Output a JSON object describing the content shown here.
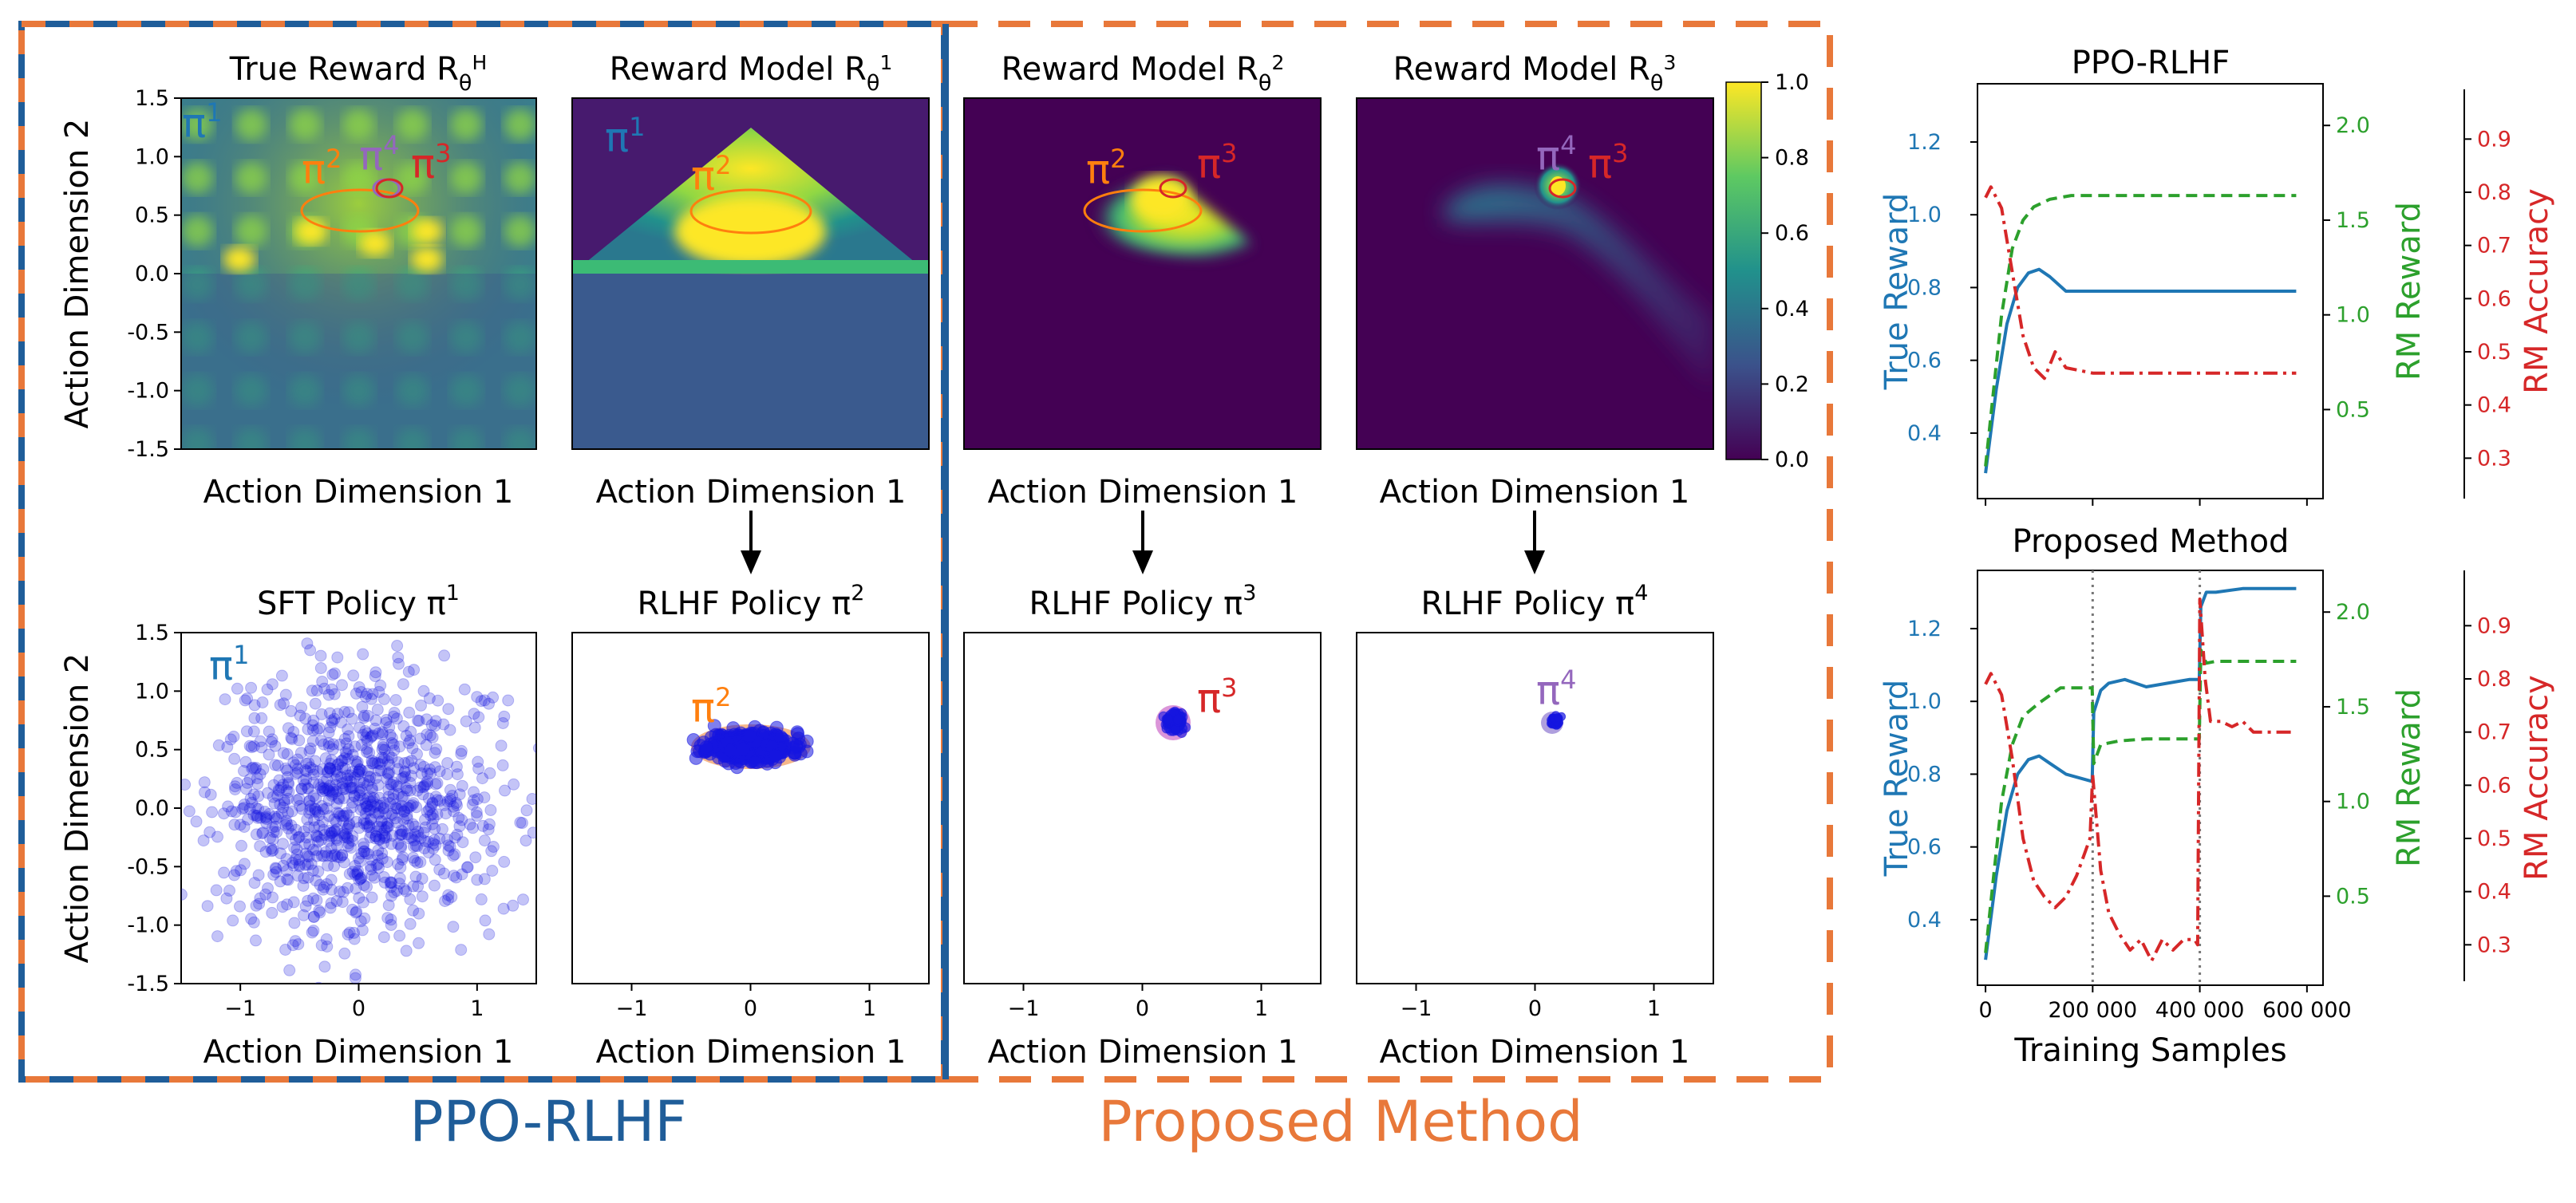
{
  "figure": {
    "group_labels": {
      "left": "PPO-RLHF",
      "right": "Proposed Method"
    },
    "colors": {
      "ppo": "#1f5d99",
      "proposed": "#e8783a",
      "blue": "#1f77b4",
      "green": "#2ca02c",
      "red": "#d62728",
      "orange": "#ff7f0e",
      "purple": "#9467bd",
      "scatter": "#1515e0"
    },
    "colorbar": {
      "ticks": [
        "1.0",
        "0.8",
        "0.6",
        "0.4",
        "0.2",
        "0.0"
      ]
    }
  },
  "chart_data": [
    {
      "type": "heatmap",
      "id": "true-reward",
      "title": "True Reward R",
      "title_sub": "θ",
      "title_sup": "H",
      "xlabel": "Action Dimension 1",
      "ylabel": "Action Dimension 2",
      "xlim": [
        -1.5,
        1.5
      ],
      "ylim": [
        -1.5,
        1.5
      ],
      "yticks": [
        "1.5",
        "1.0",
        "0.5",
        "0.0",
        "-0.5",
        "-1.0",
        "-1.5"
      ],
      "annotations": [
        "π",
        "π",
        "π",
        "π"
      ],
      "annotation_sups": [
        "1",
        "2",
        "4",
        "3"
      ]
    },
    {
      "type": "heatmap",
      "id": "rm1",
      "title": "Reward Model R",
      "title_sub": "θ",
      "title_sup": "1",
      "xlabel": "Action Dimension 1",
      "annotations": [
        "π",
        "π"
      ],
      "annotation_sups": [
        "1",
        "2"
      ]
    },
    {
      "type": "heatmap",
      "id": "rm2",
      "title": "Reward Model R",
      "title_sub": "θ",
      "title_sup": "2",
      "xlabel": "Action Dimension 1",
      "annotations": [
        "π",
        "π"
      ],
      "annotation_sups": [
        "2",
        "3"
      ]
    },
    {
      "type": "heatmap",
      "id": "rm3",
      "title": "Reward Model R",
      "title_sub": "θ",
      "title_sup": "3",
      "xlabel": "Action Dimension 1",
      "annotations": [
        "π",
        "π"
      ],
      "annotation_sups": [
        "4",
        "3"
      ]
    },
    {
      "type": "scatter",
      "id": "sft",
      "title": "SFT Policy π",
      "title_sup": "1",
      "xlabel": "Action Dimension 1",
      "ylabel": "Action Dimension 2",
      "xlim": [
        -1.5,
        1.5
      ],
      "ylim": [
        -1.5,
        1.5
      ],
      "xticks": [
        "−1",
        "0",
        "1"
      ],
      "yticks": [
        "1.5",
        "1.0",
        "0.5",
        "0.0",
        "-0.5",
        "-1.0",
        "-1.5"
      ],
      "annotation": "π",
      "annotation_sup": "1",
      "mean": [
        0,
        0
      ],
      "std": [
        0.6,
        0.55
      ],
      "n": 1000
    },
    {
      "type": "scatter",
      "id": "rlhf2",
      "title": "RLHF Policy π",
      "title_sup": "2",
      "xlabel": "Action Dimension 1",
      "xticks": [
        "−1",
        "0",
        "1"
      ],
      "annotation": "π",
      "annotation_sup": "2",
      "mean": [
        0,
        0.53
      ],
      "std": [
        0.17,
        0.06
      ],
      "n": 500
    },
    {
      "type": "scatter",
      "id": "rlhf3",
      "title": "RLHF Policy π",
      "title_sup": "3",
      "xlabel": "Action Dimension 1",
      "xticks": [
        "−1",
        "0",
        "1"
      ],
      "annotation": "π",
      "annotation_sup": "3",
      "mean": [
        0.27,
        0.74
      ],
      "std": [
        0.04,
        0.04
      ],
      "n": 80
    },
    {
      "type": "scatter",
      "id": "rlhf4",
      "title": "RLHF Policy π",
      "title_sup": "4",
      "xlabel": "Action Dimension 1",
      "xticks": [
        "−1",
        "0",
        "1"
      ],
      "annotation": "π",
      "annotation_sup": "4",
      "mean": [
        0.17,
        0.74
      ],
      "std": [
        0.02,
        0.02
      ],
      "n": 40
    },
    {
      "type": "line",
      "id": "ppo-curves",
      "title": "PPO-RLHF",
      "ylabels": [
        "True Reward",
        "RM Reward",
        "RM Accuracy"
      ],
      "xlim": [
        -15000,
        630000
      ],
      "axes": [
        {
          "ylim": [
            0.22,
            1.36
          ],
          "ticks": [
            "1.2",
            "1.0",
            "0.8",
            "0.6",
            "0.4"
          ],
          "tick_values": [
            1.2,
            1.0,
            0.8,
            0.6,
            0.4
          ]
        },
        {
          "ylim": [
            0.03,
            2.22
          ],
          "ticks": [
            "2.0",
            "1.5",
            "1.0",
            "0.5"
          ],
          "tick_values": [
            2.0,
            1.5,
            1.0,
            0.5
          ]
        },
        {
          "ylim": [
            0.224,
            1.004
          ],
          "ticks": [
            "0.9",
            "0.8",
            "0.7",
            "0.6",
            "0.5",
            "0.4",
            "0.3"
          ],
          "tick_values": [
            0.9,
            0.8,
            0.7,
            0.6,
            0.5,
            0.4,
            0.3
          ]
        }
      ],
      "series": [
        {
          "name": "True Reward",
          "axis": 0,
          "x": [
            0,
            20000,
            40000,
            60000,
            80000,
            100000,
            120000,
            150000,
            200000,
            300000,
            400000,
            500000,
            580000
          ],
          "y": [
            0.29,
            0.52,
            0.7,
            0.8,
            0.84,
            0.85,
            0.83,
            0.79,
            0.79,
            0.79,
            0.79,
            0.79,
            0.79
          ]
        },
        {
          "name": "RM Reward",
          "axis": 1,
          "x": [
            0,
            15000,
            30000,
            50000,
            70000,
            90000,
            120000,
            160000,
            200000,
            300000,
            400000,
            500000,
            580000
          ],
          "y": [
            0.2,
            0.6,
            1.0,
            1.35,
            1.5,
            1.57,
            1.61,
            1.63,
            1.63,
            1.63,
            1.63,
            1.63,
            1.63
          ]
        },
        {
          "name": "RM Accuracy",
          "axis": 2,
          "x": [
            0,
            10000,
            30000,
            50000,
            70000,
            90000,
            110000,
            130000,
            150000,
            200000,
            300000,
            400000,
            500000,
            580000
          ],
          "y": [
            0.79,
            0.81,
            0.77,
            0.65,
            0.53,
            0.47,
            0.45,
            0.5,
            0.47,
            0.46,
            0.46,
            0.46,
            0.46,
            0.46
          ]
        }
      ]
    },
    {
      "type": "line",
      "id": "proposed-curves",
      "title": "Proposed Method",
      "xlabel": "Training Samples",
      "ylabels": [
        "True Reward",
        "RM Reward",
        "RM Accuracy"
      ],
      "xlim": [
        -15000,
        630000
      ],
      "xticks": [
        "0",
        "200 000",
        "400 000",
        "600 000"
      ],
      "xtick_values": [
        0,
        200000,
        400000,
        600000
      ],
      "vlines": [
        200000,
        400000
      ],
      "axes": [
        {
          "ylim": [
            0.22,
            1.36
          ],
          "ticks": [
            "1.2",
            "1.0",
            "0.8",
            "0.6",
            "0.4"
          ],
          "tick_values": [
            1.2,
            1.0,
            0.8,
            0.6,
            0.4
          ]
        },
        {
          "ylim": [
            0.03,
            2.22
          ],
          "ticks": [
            "2.0",
            "1.5",
            "1.0",
            "0.5"
          ],
          "tick_values": [
            2.0,
            1.5,
            1.0,
            0.5
          ]
        },
        {
          "ylim": [
            0.224,
            1.004
          ],
          "ticks": [
            "0.9",
            "0.8",
            "0.7",
            "0.6",
            "0.5",
            "0.4",
            "0.3"
          ],
          "tick_values": [
            0.9,
            0.8,
            0.7,
            0.6,
            0.5,
            0.4,
            0.3
          ]
        }
      ],
      "series": [
        {
          "name": "True Reward",
          "axis": 0,
          "x": [
            0,
            20000,
            40000,
            60000,
            80000,
            100000,
            120000,
            150000,
            199000,
            202000,
            215000,
            230000,
            260000,
            300000,
            340000,
            380000,
            399000,
            402000,
            412000,
            430000,
            480000,
            540000,
            580000
          ],
          "y": [
            0.29,
            0.52,
            0.7,
            0.8,
            0.84,
            0.85,
            0.83,
            0.8,
            0.78,
            0.97,
            1.03,
            1.05,
            1.06,
            1.04,
            1.05,
            1.06,
            1.06,
            1.26,
            1.3,
            1.3,
            1.31,
            1.31,
            1.31
          ]
        },
        {
          "name": "RM Reward",
          "axis": 1,
          "x": [
            0,
            15000,
            30000,
            50000,
            70000,
            100000,
            140000,
            199000,
            202000,
            215000,
            250000,
            300000,
            399000,
            402000,
            412000,
            430000,
            480000,
            540000,
            580000
          ],
          "y": [
            0.2,
            0.6,
            1.0,
            1.3,
            1.45,
            1.52,
            1.6,
            1.6,
            1.2,
            1.3,
            1.32,
            1.33,
            1.33,
            1.8,
            1.73,
            1.74,
            1.74,
            1.74,
            1.74
          ]
        },
        {
          "name": "RM Accuracy",
          "axis": 2,
          "x": [
            0,
            10000,
            30000,
            50000,
            70000,
            90000,
            110000,
            130000,
            150000,
            170000,
            195000,
            200000,
            215000,
            230000,
            250000,
            270000,
            290000,
            310000,
            330000,
            350000,
            370000,
            390000,
            396000,
            400000,
            410000,
            420000,
            440000,
            460000,
            480000,
            500000,
            540000,
            580000
          ],
          "y": [
            0.79,
            0.81,
            0.77,
            0.65,
            0.5,
            0.42,
            0.39,
            0.37,
            0.39,
            0.43,
            0.5,
            0.62,
            0.44,
            0.36,
            0.32,
            0.29,
            0.31,
            0.27,
            0.31,
            0.29,
            0.31,
            0.31,
            0.3,
            0.95,
            0.8,
            0.72,
            0.72,
            0.71,
            0.72,
            0.7,
            0.7,
            0.7
          ]
        }
      ]
    }
  ]
}
